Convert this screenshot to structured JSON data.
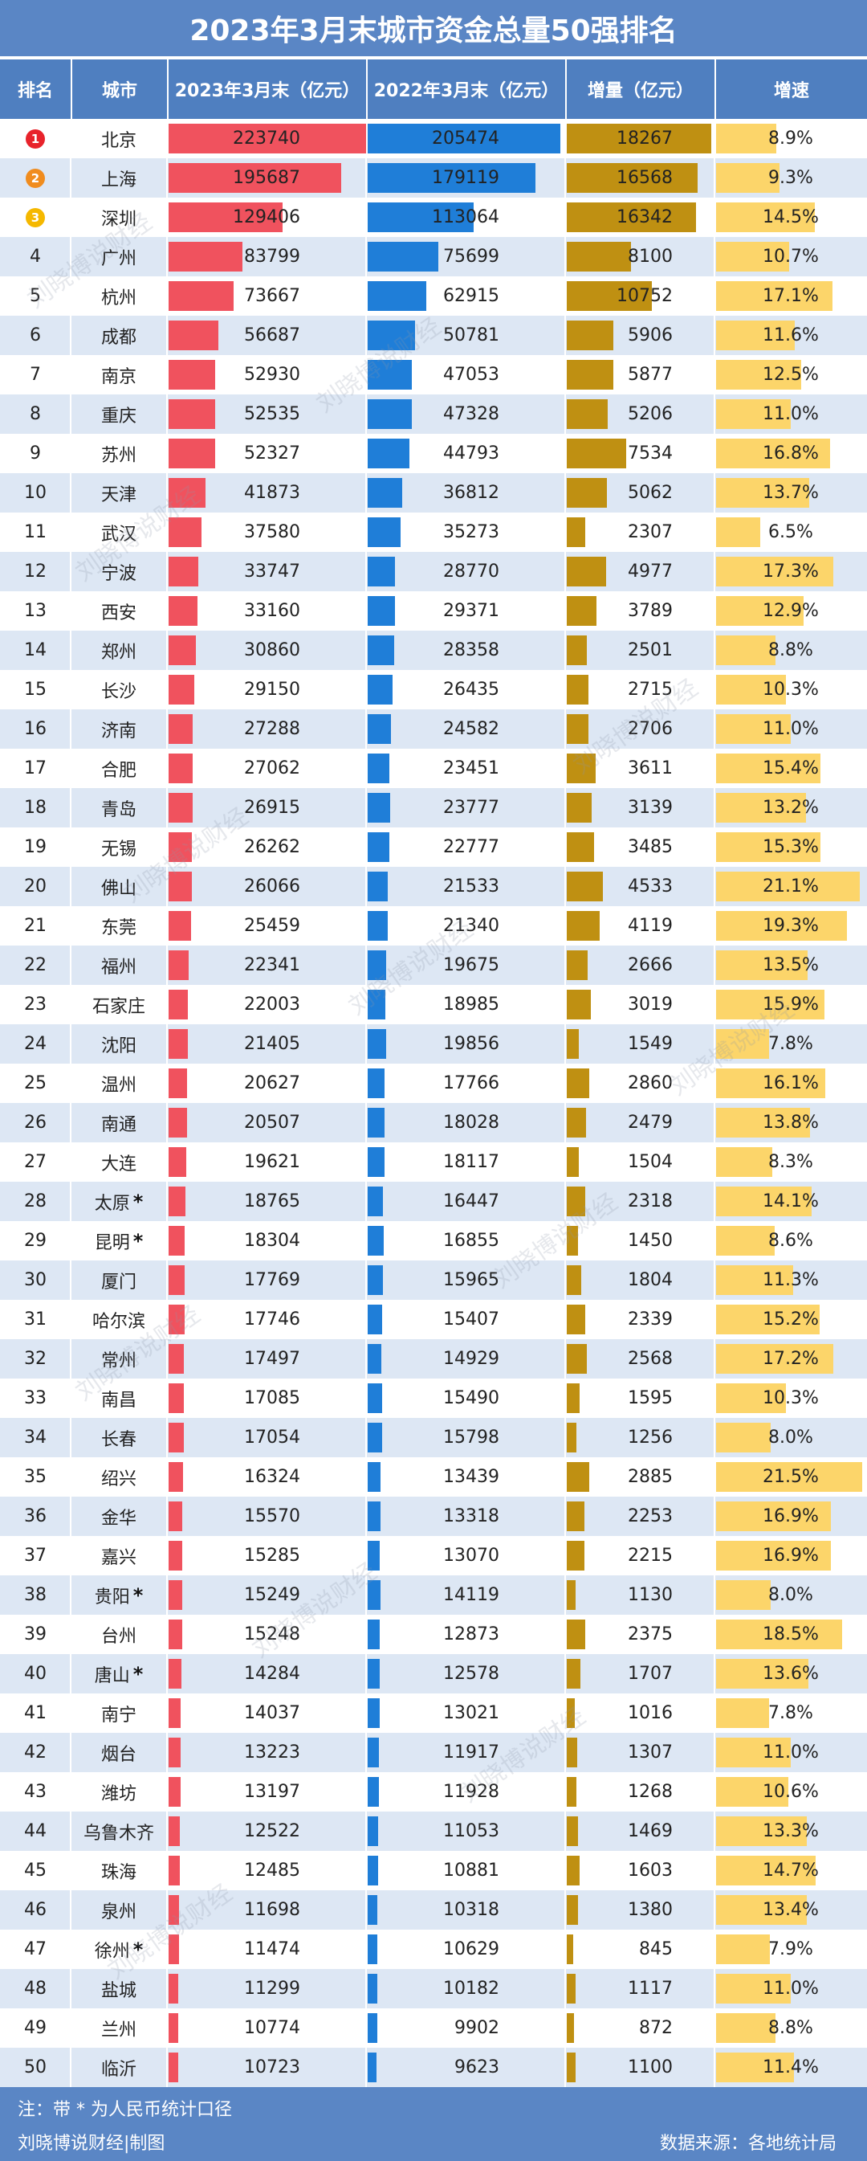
{
  "title": "2023年3月末城市资金总量50强排名",
  "headers": {
    "rank": "排名",
    "city": "城市",
    "y2023": "2023年3月末（亿元）",
    "y2022": "2022年3月末（亿元）",
    "increase": "增量（亿元）",
    "growth": "增速"
  },
  "colors": {
    "title_bg": "#5a86c5",
    "header_bg": "#4f7fc0",
    "row_alt": "#dde7f4",
    "bar_2023": "#f0525e",
    "bar_2022": "#1f7ed8",
    "bar_increase": "#bf9012",
    "bar_growth": "#fcd56a",
    "medal_1": "#e8232b",
    "medal_2": "#f08c1e",
    "medal_3": "#f5b800"
  },
  "chart_data": {
    "type": "table",
    "title": "2023年3月末城市资金总量50强排名",
    "columns": [
      "排名",
      "城市",
      "2023年3月末（亿元）",
      "2022年3月末（亿元）",
      "增量（亿元）",
      "增速"
    ],
    "rows": [
      {
        "rank": "1",
        "city": "北京",
        "star": false,
        "v2023": 223740,
        "v2022": 205474,
        "inc": 18267,
        "rate": "8.9%",
        "rate_val": 8.9
      },
      {
        "rank": "2",
        "city": "上海",
        "star": false,
        "v2023": 195687,
        "v2022": 179119,
        "inc": 16568,
        "rate": "9.3%",
        "rate_val": 9.3
      },
      {
        "rank": "3",
        "city": "深圳",
        "star": false,
        "v2023": 129406,
        "v2022": 113064,
        "inc": 16342,
        "rate": "14.5%",
        "rate_val": 14.5
      },
      {
        "rank": "4",
        "city": "广州",
        "star": false,
        "v2023": 83799,
        "v2022": 75699,
        "inc": 8100,
        "rate": "10.7%",
        "rate_val": 10.7
      },
      {
        "rank": "5",
        "city": "杭州",
        "star": false,
        "v2023": 73667,
        "v2022": 62915,
        "inc": 10752,
        "rate": "17.1%",
        "rate_val": 17.1
      },
      {
        "rank": "6",
        "city": "成都",
        "star": false,
        "v2023": 56687,
        "v2022": 50781,
        "inc": 5906,
        "rate": "11.6%",
        "rate_val": 11.6
      },
      {
        "rank": "7",
        "city": "南京",
        "star": false,
        "v2023": 52930,
        "v2022": 47053,
        "inc": 5877,
        "rate": "12.5%",
        "rate_val": 12.5
      },
      {
        "rank": "8",
        "city": "重庆",
        "star": false,
        "v2023": 52535,
        "v2022": 47328,
        "inc": 5206,
        "rate": "11.0%",
        "rate_val": 11.0
      },
      {
        "rank": "9",
        "city": "苏州",
        "star": false,
        "v2023": 52327,
        "v2022": 44793,
        "inc": 7534,
        "rate": "16.8%",
        "rate_val": 16.8
      },
      {
        "rank": "10",
        "city": "天津",
        "star": false,
        "v2023": 41873,
        "v2022": 36812,
        "inc": 5062,
        "rate": "13.7%",
        "rate_val": 13.7
      },
      {
        "rank": "11",
        "city": "武汉",
        "star": false,
        "v2023": 37580,
        "v2022": 35273,
        "inc": 2307,
        "rate": "6.5%",
        "rate_val": 6.5
      },
      {
        "rank": "12",
        "city": "宁波",
        "star": false,
        "v2023": 33747,
        "v2022": 28770,
        "inc": 4977,
        "rate": "17.3%",
        "rate_val": 17.3
      },
      {
        "rank": "13",
        "city": "西安",
        "star": false,
        "v2023": 33160,
        "v2022": 29371,
        "inc": 3789,
        "rate": "12.9%",
        "rate_val": 12.9
      },
      {
        "rank": "14",
        "city": "郑州",
        "star": false,
        "v2023": 30860,
        "v2022": 28358,
        "inc": 2501,
        "rate": "8.8%",
        "rate_val": 8.8
      },
      {
        "rank": "15",
        "city": "长沙",
        "star": false,
        "v2023": 29150,
        "v2022": 26435,
        "inc": 2715,
        "rate": "10.3%",
        "rate_val": 10.3
      },
      {
        "rank": "16",
        "city": "济南",
        "star": false,
        "v2023": 27288,
        "v2022": 24582,
        "inc": 2706,
        "rate": "11.0%",
        "rate_val": 11.0
      },
      {
        "rank": "17",
        "city": "合肥",
        "star": false,
        "v2023": 27062,
        "v2022": 23451,
        "inc": 3611,
        "rate": "15.4%",
        "rate_val": 15.4
      },
      {
        "rank": "18",
        "city": "青岛",
        "star": false,
        "v2023": 26915,
        "v2022": 23777,
        "inc": 3139,
        "rate": "13.2%",
        "rate_val": 13.2
      },
      {
        "rank": "19",
        "city": "无锡",
        "star": false,
        "v2023": 26262,
        "v2022": 22777,
        "inc": 3485,
        "rate": "15.3%",
        "rate_val": 15.3
      },
      {
        "rank": "20",
        "city": "佛山",
        "star": false,
        "v2023": 26066,
        "v2022": 21533,
        "inc": 4533,
        "rate": "21.1%",
        "rate_val": 21.1
      },
      {
        "rank": "21",
        "city": "东莞",
        "star": false,
        "v2023": 25459,
        "v2022": 21340,
        "inc": 4119,
        "rate": "19.3%",
        "rate_val": 19.3
      },
      {
        "rank": "22",
        "city": "福州",
        "star": false,
        "v2023": 22341,
        "v2022": 19675,
        "inc": 2666,
        "rate": "13.5%",
        "rate_val": 13.5
      },
      {
        "rank": "23",
        "city": "石家庄",
        "star": false,
        "v2023": 22003,
        "v2022": 18985,
        "inc": 3019,
        "rate": "15.9%",
        "rate_val": 15.9
      },
      {
        "rank": "24",
        "city": "沈阳",
        "star": false,
        "v2023": 21405,
        "v2022": 19856,
        "inc": 1549,
        "rate": "7.8%",
        "rate_val": 7.8
      },
      {
        "rank": "25",
        "city": "温州",
        "star": false,
        "v2023": 20627,
        "v2022": 17766,
        "inc": 2860,
        "rate": "16.1%",
        "rate_val": 16.1
      },
      {
        "rank": "26",
        "city": "南通",
        "star": false,
        "v2023": 20507,
        "v2022": 18028,
        "inc": 2479,
        "rate": "13.8%",
        "rate_val": 13.8
      },
      {
        "rank": "27",
        "city": "大连",
        "star": false,
        "v2023": 19621,
        "v2022": 18117,
        "inc": 1504,
        "rate": "8.3%",
        "rate_val": 8.3
      },
      {
        "rank": "28",
        "city": "太原",
        "star": true,
        "v2023": 18765,
        "v2022": 16447,
        "inc": 2318,
        "rate": "14.1%",
        "rate_val": 14.1
      },
      {
        "rank": "29",
        "city": "昆明",
        "star": true,
        "v2023": 18304,
        "v2022": 16855,
        "inc": 1450,
        "rate": "8.6%",
        "rate_val": 8.6
      },
      {
        "rank": "30",
        "city": "厦门",
        "star": false,
        "v2023": 17769,
        "v2022": 15965,
        "inc": 1804,
        "rate": "11.3%",
        "rate_val": 11.3
      },
      {
        "rank": "31",
        "city": "哈尔滨",
        "star": false,
        "v2023": 17746,
        "v2022": 15407,
        "inc": 2339,
        "rate": "15.2%",
        "rate_val": 15.2
      },
      {
        "rank": "32",
        "city": "常州",
        "star": false,
        "v2023": 17497,
        "v2022": 14929,
        "inc": 2568,
        "rate": "17.2%",
        "rate_val": 17.2
      },
      {
        "rank": "33",
        "city": "南昌",
        "star": false,
        "v2023": 17085,
        "v2022": 15490,
        "inc": 1595,
        "rate": "10.3%",
        "rate_val": 10.3
      },
      {
        "rank": "34",
        "city": "长春",
        "star": false,
        "v2023": 17054,
        "v2022": 15798,
        "inc": 1256,
        "rate": "8.0%",
        "rate_val": 8.0
      },
      {
        "rank": "35",
        "city": "绍兴",
        "star": false,
        "v2023": 16324,
        "v2022": 13439,
        "inc": 2885,
        "rate": "21.5%",
        "rate_val": 21.5
      },
      {
        "rank": "36",
        "city": "金华",
        "star": false,
        "v2023": 15570,
        "v2022": 13318,
        "inc": 2253,
        "rate": "16.9%",
        "rate_val": 16.9
      },
      {
        "rank": "37",
        "city": "嘉兴",
        "star": false,
        "v2023": 15285,
        "v2022": 13070,
        "inc": 2215,
        "rate": "16.9%",
        "rate_val": 16.9
      },
      {
        "rank": "38",
        "city": "贵阳",
        "star": true,
        "v2023": 15249,
        "v2022": 14119,
        "inc": 1130,
        "rate": "8.0%",
        "rate_val": 8.0
      },
      {
        "rank": "39",
        "city": "台州",
        "star": false,
        "v2023": 15248,
        "v2022": 12873,
        "inc": 2375,
        "rate": "18.5%",
        "rate_val": 18.5
      },
      {
        "rank": "40",
        "city": "唐山",
        "star": true,
        "v2023": 14284,
        "v2022": 12578,
        "inc": 1707,
        "rate": "13.6%",
        "rate_val": 13.6
      },
      {
        "rank": "41",
        "city": "南宁",
        "star": false,
        "v2023": 14037,
        "v2022": 13021,
        "inc": 1016,
        "rate": "7.8%",
        "rate_val": 7.8
      },
      {
        "rank": "42",
        "city": "烟台",
        "star": false,
        "v2023": 13223,
        "v2022": 11917,
        "inc": 1307,
        "rate": "11.0%",
        "rate_val": 11.0
      },
      {
        "rank": "43",
        "city": "潍坊",
        "star": false,
        "v2023": 13197,
        "v2022": 11928,
        "inc": 1268,
        "rate": "10.6%",
        "rate_val": 10.6
      },
      {
        "rank": "44",
        "city": "乌鲁木齐",
        "star": false,
        "v2023": 12522,
        "v2022": 11053,
        "inc": 1469,
        "rate": "13.3%",
        "rate_val": 13.3
      },
      {
        "rank": "45",
        "city": "珠海",
        "star": false,
        "v2023": 12485,
        "v2022": 10881,
        "inc": 1603,
        "rate": "14.7%",
        "rate_val": 14.7
      },
      {
        "rank": "46",
        "city": "泉州",
        "star": false,
        "v2023": 11698,
        "v2022": 10318,
        "inc": 1380,
        "rate": "13.4%",
        "rate_val": 13.4
      },
      {
        "rank": "47",
        "city": "徐州",
        "star": true,
        "v2023": 11474,
        "v2022": 10629,
        "inc": 845,
        "rate": "7.9%",
        "rate_val": 7.9
      },
      {
        "rank": "48",
        "city": "盐城",
        "star": false,
        "v2023": 11299,
        "v2022": 10182,
        "inc": 1117,
        "rate": "11.0%",
        "rate_val": 11.0
      },
      {
        "rank": "49",
        "city": "兰州",
        "star": false,
        "v2023": 10774,
        "v2022": 9902,
        "inc": 872,
        "rate": "8.8%",
        "rate_val": 8.8
      },
      {
        "rank": "50",
        "city": "临沂",
        "star": false,
        "v2023": 10723,
        "v2022": 9623,
        "inc": 1100,
        "rate": "11.4%",
        "rate_val": 11.4
      }
    ]
  },
  "star_symbol": "*",
  "footer": {
    "note": "注：带 * 为人民币统计口径",
    "author": "刘晓博说财经|制图",
    "source": "数据来源：各地统计局"
  },
  "watermark": "刘晓博说财经"
}
